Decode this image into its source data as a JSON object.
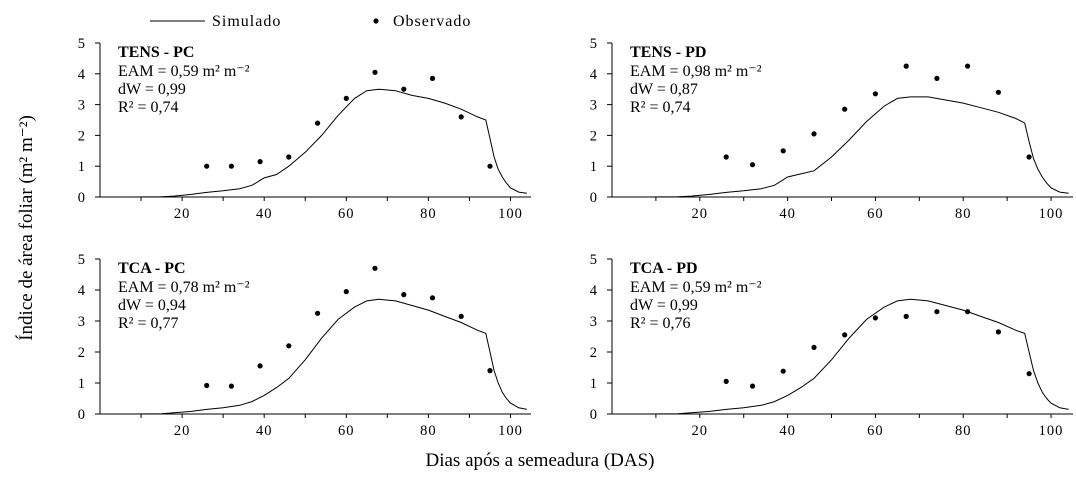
{
  "legend": {
    "simulado": "Simulado",
    "observado": "Observado"
  },
  "xlabel": "Dias após a semeadura (DAS)",
  "ylabel": "Índice de área foliar (m² m⁻²)",
  "colors": {
    "line": "#000000",
    "points": "#000000"
  },
  "chart_data": [
    {
      "type": "line",
      "panel": "TENS - PC",
      "title": "TENS - PC",
      "annotations": [
        "EAM =  0,59 m² m⁻²",
        "dW = 0,99",
        "R² = 0,74"
      ],
      "xlim": [
        0,
        105
      ],
      "ylim": [
        0,
        5
      ],
      "xticks": [
        20,
        40,
        60,
        80,
        100
      ],
      "yticks": [
        0,
        1,
        2,
        3,
        4,
        5
      ],
      "series": [
        {
          "name": "Simulado",
          "kind": "line",
          "x": [
            8,
            15,
            18,
            22,
            26,
            30,
            34,
            37,
            40,
            43,
            46,
            50,
            54,
            58,
            62,
            65,
            68,
            72,
            76,
            80,
            84,
            88,
            92,
            94,
            95,
            96,
            97,
            98,
            99,
            100,
            102,
            104
          ],
          "y": [
            0,
            0.01,
            0.03,
            0.08,
            0.15,
            0.2,
            0.27,
            0.38,
            0.62,
            0.73,
            1.0,
            1.45,
            2.0,
            2.65,
            3.2,
            3.45,
            3.5,
            3.45,
            3.3,
            3.2,
            3.05,
            2.85,
            2.6,
            2.5,
            1.9,
            1.3,
            0.9,
            0.65,
            0.45,
            0.3,
            0.16,
            0.12
          ]
        },
        {
          "name": "Observado",
          "kind": "scatter",
          "x": [
            26,
            32,
            39,
            46,
            53,
            60,
            67,
            74,
            81,
            88,
            95
          ],
          "y": [
            1.0,
            1.0,
            1.15,
            1.3,
            2.4,
            3.2,
            4.05,
            3.5,
            3.85,
            2.6,
            1.0
          ]
        }
      ]
    },
    {
      "type": "line",
      "panel": "TENS - PD",
      "title": "TENS - PD",
      "annotations": [
        "EAM = 0,98 m² m⁻²",
        "dW = 0,87",
        "R² = 0,74"
      ],
      "xlim": [
        0,
        105
      ],
      "ylim": [
        0,
        5
      ],
      "xticks": [
        20,
        40,
        60,
        80,
        100
      ],
      "yticks": [
        0,
        1,
        2,
        3,
        4,
        5
      ],
      "series": [
        {
          "name": "Simulado",
          "kind": "line",
          "x": [
            8,
            15,
            18,
            22,
            26,
            30,
            34,
            37,
            40,
            43,
            46,
            50,
            54,
            58,
            62,
            65,
            68,
            72,
            76,
            80,
            84,
            88,
            92,
            94,
            95,
            96,
            97,
            98,
            99,
            100,
            102,
            104
          ],
          "y": [
            0,
            0.01,
            0.03,
            0.08,
            0.15,
            0.2,
            0.27,
            0.38,
            0.65,
            0.75,
            0.85,
            1.3,
            1.85,
            2.45,
            2.95,
            3.2,
            3.25,
            3.25,
            3.15,
            3.05,
            2.9,
            2.75,
            2.55,
            2.4,
            1.8,
            1.25,
            0.9,
            0.65,
            0.45,
            0.3,
            0.16,
            0.12
          ]
        },
        {
          "name": "Observado",
          "kind": "scatter",
          "x": [
            26,
            32,
            39,
            46,
            53,
            60,
            67,
            74,
            81,
            88,
            95
          ],
          "y": [
            1.3,
            1.05,
            1.5,
            2.05,
            2.85,
            3.35,
            4.25,
            3.85,
            4.25,
            3.4,
            1.3
          ]
        }
      ]
    },
    {
      "type": "line",
      "panel": "TCA - PC",
      "title": "TCA - PC",
      "annotations": [
        "EAM = 0,78 m² m⁻²",
        "dW = 0,94",
        "R² = 0,77"
      ],
      "xlim": [
        0,
        105
      ],
      "ylim": [
        0,
        5
      ],
      "xticks": [
        20,
        40,
        60,
        80,
        100
      ],
      "yticks": [
        0,
        1,
        2,
        3,
        4,
        5
      ],
      "series": [
        {
          "name": "Simulado",
          "kind": "line",
          "x": [
            8,
            15,
            18,
            22,
            26,
            30,
            34,
            37,
            40,
            43,
            46,
            50,
            54,
            58,
            62,
            65,
            68,
            72,
            76,
            80,
            84,
            88,
            92,
            94,
            95,
            96,
            97,
            98,
            99,
            100,
            102,
            104
          ],
          "y": [
            0,
            0.01,
            0.04,
            0.08,
            0.15,
            0.2,
            0.28,
            0.4,
            0.6,
            0.85,
            1.15,
            1.75,
            2.45,
            3.05,
            3.45,
            3.65,
            3.7,
            3.65,
            3.5,
            3.35,
            3.15,
            2.95,
            2.7,
            2.6,
            2.0,
            1.4,
            1.0,
            0.7,
            0.5,
            0.35,
            0.2,
            0.15
          ]
        },
        {
          "name": "Observado",
          "kind": "scatter",
          "x": [
            26,
            32,
            39,
            46,
            53,
            60,
            67,
            74,
            81,
            88,
            95
          ],
          "y": [
            0.92,
            0.9,
            1.55,
            2.2,
            3.25,
            3.95,
            4.7,
            3.85,
            3.75,
            3.15,
            1.4
          ]
        }
      ]
    },
    {
      "type": "line",
      "panel": "TCA - PD",
      "title": "TCA - PD",
      "annotations": [
        "EAM = 0,59 m² m⁻²",
        "dW = 0,99",
        "R² = 0,76"
      ],
      "xlim": [
        0,
        105
      ],
      "ylim": [
        0,
        5
      ],
      "xticks": [
        20,
        40,
        60,
        80,
        100
      ],
      "yticks": [
        0,
        1,
        2,
        3,
        4,
        5
      ],
      "series": [
        {
          "name": "Simulado",
          "kind": "line",
          "x": [
            8,
            15,
            18,
            22,
            26,
            30,
            34,
            37,
            40,
            43,
            46,
            50,
            54,
            58,
            62,
            65,
            68,
            72,
            76,
            80,
            84,
            88,
            92,
            94,
            95,
            96,
            97,
            98,
            99,
            100,
            102,
            104
          ],
          "y": [
            0,
            0.01,
            0.04,
            0.08,
            0.15,
            0.2,
            0.28,
            0.4,
            0.6,
            0.85,
            1.15,
            1.75,
            2.45,
            3.05,
            3.45,
            3.65,
            3.7,
            3.65,
            3.5,
            3.35,
            3.15,
            2.95,
            2.7,
            2.6,
            2.0,
            1.4,
            1.0,
            0.7,
            0.5,
            0.35,
            0.2,
            0.15
          ]
        },
        {
          "name": "Observado",
          "kind": "scatter",
          "x": [
            26,
            32,
            39,
            46,
            53,
            60,
            67,
            74,
            81,
            88,
            95
          ],
          "y": [
            1.05,
            0.9,
            1.38,
            2.15,
            2.55,
            3.1,
            3.15,
            3.3,
            3.3,
            2.65,
            1.3
          ]
        }
      ]
    }
  ]
}
